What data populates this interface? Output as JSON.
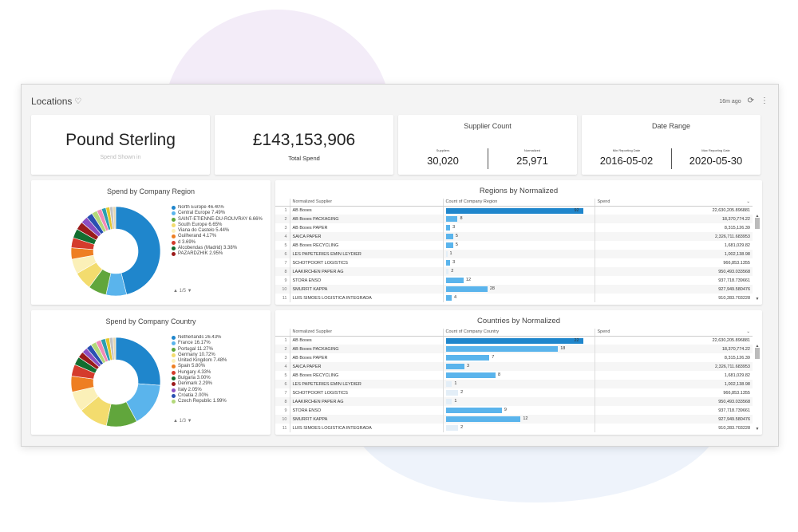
{
  "dashboard": {
    "title": "Locations",
    "updated": "16m ago"
  },
  "kpis": {
    "currency": {
      "value": "Pound Sterling",
      "label": "Spend Shown in"
    },
    "total": {
      "value": "£143,153,906",
      "label": "Total Spend"
    },
    "supplier_count": {
      "title": "Supplier Count",
      "left": {
        "label": "Suppliers",
        "value": "30,020"
      },
      "right": {
        "label": "Normalized",
        "value": "25,971"
      }
    },
    "date_range": {
      "title": "Date Range",
      "left": {
        "label": "Min Reporting Date",
        "value": "2016-05-02"
      },
      "right": {
        "label": "Max Reporting Date",
        "value": "2020-05-30"
      }
    }
  },
  "chart_data": [
    {
      "type": "pie",
      "title": "Spend by Company Region",
      "donut": true,
      "pager": "1/5",
      "labels": [
        "North Europe 46.40%",
        "Central Europe 7.49%",
        "SAINT-ETIENNE-DU-ROUVRAY 6.66%",
        "South Europe 6.65%",
        "Viana do Castelo 5.44%",
        "Guilherand 4.17%",
        "d 3.69%",
        "Alcobendas (Madrid) 3.38%",
        "PAZARDZHIK 2.95%"
      ],
      "slices": [
        {
          "value": 46.4,
          "color": "#1f86cc"
        },
        {
          "value": 7.49,
          "color": "#5ab4ec"
        },
        {
          "value": 6.66,
          "color": "#61a63c"
        },
        {
          "value": 6.65,
          "color": "#f3dc6e"
        },
        {
          "value": 5.44,
          "color": "#fbf0b8"
        },
        {
          "value": 4.17,
          "color": "#ee7e22"
        },
        {
          "value": 3.69,
          "color": "#d43b2c"
        },
        {
          "value": 3.38,
          "color": "#126d2f"
        },
        {
          "value": 2.95,
          "color": "#9b1b1b"
        },
        {
          "value": 2.6,
          "color": "#8b4fc2"
        },
        {
          "value": 2.3,
          "color": "#2a50b2"
        },
        {
          "value": 2.0,
          "color": "#b3d87a"
        },
        {
          "value": 1.8,
          "color": "#f08bb7"
        },
        {
          "value": 1.6,
          "color": "#2a9fb0"
        },
        {
          "value": 1.4,
          "color": "#e2c72e"
        },
        {
          "value": 1.2,
          "color": "#c3c3c3"
        },
        {
          "value": 1.0,
          "color": "#e8d8ae"
        }
      ]
    },
    {
      "type": "pie",
      "title": "Spend by Company Country",
      "donut": true,
      "pager": "1/3",
      "labels": [
        "Netherlands 26.43%",
        "France 16.17%",
        "Portugal 11.27%",
        "Germany 10.72%",
        "United Kingdom 7.48%",
        "Spain 5.80%",
        "Hungary 4.33%",
        "Bulgaria 3.00%",
        "Denmark 2.29%",
        "Italy 2.05%",
        "Croatia 2.00%",
        "Czech Republic 1.99%"
      ],
      "slices": [
        {
          "value": 26.43,
          "color": "#1f86cc"
        },
        {
          "value": 16.17,
          "color": "#5ab4ec"
        },
        {
          "value": 11.27,
          "color": "#61a63c"
        },
        {
          "value": 10.72,
          "color": "#f3dc6e"
        },
        {
          "value": 7.48,
          "color": "#fbf0b8"
        },
        {
          "value": 5.8,
          "color": "#ee7e22"
        },
        {
          "value": 4.33,
          "color": "#d43b2c"
        },
        {
          "value": 3.0,
          "color": "#126d2f"
        },
        {
          "value": 2.29,
          "color": "#9b1b1b"
        },
        {
          "value": 2.05,
          "color": "#8b4fc2"
        },
        {
          "value": 2.0,
          "color": "#2a50b2"
        },
        {
          "value": 1.99,
          "color": "#b3d87a"
        },
        {
          "value": 1.9,
          "color": "#f08bb7"
        },
        {
          "value": 1.7,
          "color": "#2a9fb0"
        },
        {
          "value": 1.5,
          "color": "#e2c72e"
        },
        {
          "value": 1.3,
          "color": "#c3c3c3"
        },
        {
          "value": 1.0,
          "color": "#e8d8ae"
        }
      ]
    },
    {
      "type": "table",
      "title": "Regions by Normalized",
      "columns": [
        "Normalized Supplier",
        "Count of Company Region",
        "Spend"
      ],
      "max": 92,
      "rows": [
        {
          "n": "1",
          "supplier": "AB Boxes",
          "count": 92,
          "spend": "22,630,205.896881"
        },
        {
          "n": "2",
          "supplier": "AB Boxes PACKAGING",
          "count": 8,
          "spend": "18,370,774.22"
        },
        {
          "n": "3",
          "supplier": "AB Boxes PAPER",
          "count": 3,
          "spend": "8,315,126.39"
        },
        {
          "n": "4",
          "supplier": "SAICA PAPER",
          "count": 5,
          "spend": "2,326,711.683953"
        },
        {
          "n": "5",
          "supplier": "AB Boxes RECYCLING",
          "count": 5,
          "spend": "1,681,029.82"
        },
        {
          "n": "6",
          "supplier": "LES PAPETERIES EMIN LEYDIER",
          "count": 1,
          "spend": "1,002,138.98"
        },
        {
          "n": "7",
          "supplier": "SCHOTPOORT LOGISTICS",
          "count": 3,
          "spend": "966,853.1355"
        },
        {
          "n": "8",
          "supplier": "LAAKIRCHEN PAPER AG",
          "count": 2,
          "spend": "950,493.033568"
        },
        {
          "n": "9",
          "supplier": "STORA ENSO",
          "count": 12,
          "spend": "937,718.739661"
        },
        {
          "n": "10",
          "supplier": "SMURFIT KAPPA",
          "count": 28,
          "spend": "927,949.580476"
        },
        {
          "n": "11",
          "supplier": "LUIS SIMOES LOGISTICA INTEGRADA",
          "count": 4,
          "spend": "910,283.703228"
        }
      ]
    },
    {
      "type": "table",
      "title": "Countries by Normalized",
      "columns": [
        "Normalized Supplier",
        "Count of Company Country",
        "Spend"
      ],
      "max": 22,
      "rows": [
        {
          "n": "1",
          "supplier": "AB Boxes",
          "count": 22,
          "spend": "22,630,205.896881"
        },
        {
          "n": "2",
          "supplier": "AB Boxes PACKAGING",
          "count": 18,
          "spend": "18,370,774.22"
        },
        {
          "n": "3",
          "supplier": "AB Boxes PAPER",
          "count": 7,
          "spend": "8,315,126.39"
        },
        {
          "n": "4",
          "supplier": "SAICA PAPER",
          "count": 3,
          "spend": "2,326,711.683953"
        },
        {
          "n": "5",
          "supplier": "AB Boxes RECYCLING",
          "count": 8,
          "spend": "1,681,029.82"
        },
        {
          "n": "6",
          "supplier": "LES PAPETERIES EMIN LEYDIER",
          "count": 1,
          "spend": "1,002,138.98"
        },
        {
          "n": "7",
          "supplier": "SCHOTPOORT LOGISTICS",
          "count": 2,
          "spend": "966,853.1355"
        },
        {
          "n": "8",
          "supplier": "LAAKIRCHEN PAPER AG",
          "count": 1,
          "spend": "950,493.033568"
        },
        {
          "n": "9",
          "supplier": "STORA ENSO",
          "count": 9,
          "spend": "937,718.739661"
        },
        {
          "n": "10",
          "supplier": "SMURFIT KAPPA",
          "count": 12,
          "spend": "927,949.580476"
        },
        {
          "n": "11",
          "supplier": "LUIS SIMOES LOGISTICA INTEGRADA",
          "count": 2,
          "spend": "910,283.703228"
        }
      ]
    }
  ],
  "colors": {
    "bar_top": "#1f86cc",
    "bar": "#5ab4ec"
  },
  "icons": [
    "favorite-icon",
    "refresh-icon",
    "more-vert-icon",
    "sort-desc-icon"
  ]
}
